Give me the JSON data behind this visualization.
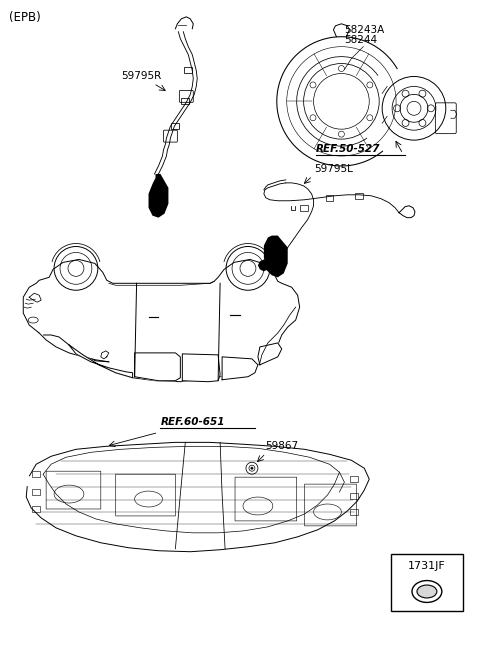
{
  "background_color": "#ffffff",
  "labels": {
    "epb": "(EPB)",
    "part1a": "58243A",
    "part1b": "58244",
    "part3": "59795R",
    "part4": "REF.50-527",
    "part5": "59795L",
    "part6": "REF.60-651",
    "part7": "59867",
    "part8": "1731JF"
  },
  "colors": {
    "line": "#000000",
    "bg": "#ffffff",
    "label_black": "#000000",
    "label_gray": "#555555"
  },
  "figsize": [
    4.8,
    6.65
  ],
  "dpi": 100
}
